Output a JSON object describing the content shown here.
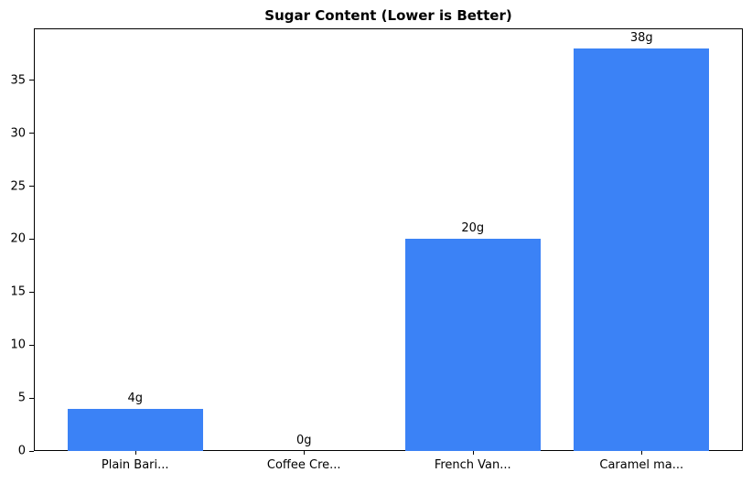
{
  "chart_data": {
    "type": "bar",
    "title": "Sugar Content (Lower is Better)",
    "categories": [
      "Plain Bari...",
      "Coffee Cre...",
      "French Van...",
      "Caramel ma..."
    ],
    "values": [
      4,
      0,
      20,
      38
    ],
    "bar_labels": [
      "4g",
      "0g",
      "20g",
      "38g"
    ],
    "xlabel": "",
    "ylabel": "",
    "ylim": [
      0,
      39.9
    ],
    "xlim": [
      -0.6,
      3.6
    ],
    "yticks": [
      0,
      5,
      10,
      15,
      20,
      25,
      30,
      35
    ],
    "bar_width_units": 0.8,
    "bar_color": "#3b82f6",
    "axis_color": "#000000",
    "background_color": "#ffffff",
    "grid": false,
    "legend": null
  }
}
